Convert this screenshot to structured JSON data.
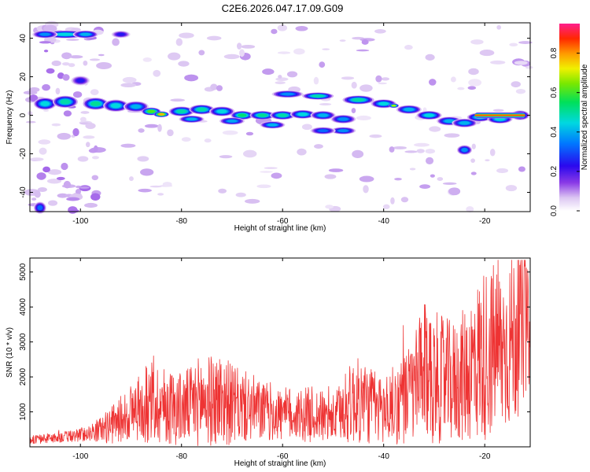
{
  "chart_data": [
    {
      "type": "heatmap",
      "title": "C2E6.2026.047.17.09.G09",
      "xlabel": "Height of straight line (km)",
      "ylabel": "Frequency (Hz)",
      "xlim": [
        -110,
        -11
      ],
      "ylim": [
        -50,
        48
      ],
      "xticks": [
        -100,
        -80,
        -60,
        -40,
        -20
      ],
      "xtick_labels": [
        "-100",
        "-80",
        "-60",
        "-40",
        "-20"
      ],
      "yticks": [
        -40,
        -20,
        0,
        20,
        40
      ],
      "ytick_labels": [
        "-40",
        "-20",
        "0",
        "20",
        "40"
      ],
      "colorbar": {
        "label": "Normalized spectral amplitude",
        "range": [
          0,
          0.95
        ],
        "ticks": [
          0.0,
          0.2,
          0.4,
          0.6,
          0.8
        ],
        "tick_labels": [
          "0.0",
          "0.2",
          "0.4",
          "0.6",
          "0.8"
        ]
      },
      "blobs": [
        {
          "x": -103,
          "y": 42,
          "v": 0.55,
          "wx": 3.5,
          "wy": 1.6
        },
        {
          "x": -107,
          "y": 42,
          "v": 0.45,
          "wx": 2,
          "wy": 1.6
        },
        {
          "x": -99,
          "y": 42,
          "v": 0.5,
          "wx": 2,
          "wy": 1.6
        },
        {
          "x": -92,
          "y": 42,
          "v": 0.3,
          "wx": 1.5,
          "wy": 1.5
        },
        {
          "x": -100,
          "y": 18,
          "v": 0.3,
          "wx": 1.5,
          "wy": 2
        },
        {
          "x": -108,
          "y": -48,
          "v": 0.4,
          "wx": 1,
          "wy": 2.5
        },
        {
          "x": -107,
          "y": 6,
          "v": 0.55,
          "wx": 1.8,
          "wy": 2.5
        },
        {
          "x": -103,
          "y": 7,
          "v": 0.6,
          "wx": 2,
          "wy": 2.5
        },
        {
          "x": -97,
          "y": 6,
          "v": 0.62,
          "wx": 2,
          "wy": 2.5
        },
        {
          "x": -93,
          "y": 5,
          "v": 0.55,
          "wx": 2,
          "wy": 2.5
        },
        {
          "x": -89,
          "y": 4.5,
          "v": 0.5,
          "wx": 2,
          "wy": 2.2
        },
        {
          "x": -86,
          "y": 2,
          "v": 0.75,
          "wx": 1.5,
          "wy": 1.6
        },
        {
          "x": -84,
          "y": 0.5,
          "v": 0.95,
          "wx": 1.2,
          "wy": 1.2
        },
        {
          "x": -80,
          "y": 2,
          "v": 0.6,
          "wx": 2,
          "wy": 2
        },
        {
          "x": -76,
          "y": 3,
          "v": 0.6,
          "wx": 2,
          "wy": 2
        },
        {
          "x": -72,
          "y": 2,
          "v": 0.55,
          "wx": 2,
          "wy": 2
        },
        {
          "x": -68,
          "y": 0,
          "v": 0.65,
          "wx": 1.8,
          "wy": 1.8
        },
        {
          "x": -64,
          "y": 0,
          "v": 0.62,
          "wx": 2,
          "wy": 1.8
        },
        {
          "x": -60,
          "y": 0,
          "v": 0.6,
          "wx": 2,
          "wy": 1.8
        },
        {
          "x": -56,
          "y": 0.5,
          "v": 0.55,
          "wx": 2,
          "wy": 1.8
        },
        {
          "x": -52,
          "y": 0,
          "v": 0.5,
          "wx": 2,
          "wy": 1.8
        },
        {
          "x": -48,
          "y": -2,
          "v": 0.45,
          "wx": 2,
          "wy": 1.8
        },
        {
          "x": -78,
          "y": -2,
          "v": 0.5,
          "wx": 2,
          "wy": 1.5
        },
        {
          "x": -70,
          "y": -3,
          "v": 0.48,
          "wx": 2,
          "wy": 1.5
        },
        {
          "x": -62,
          "y": -5,
          "v": 0.5,
          "wx": 2,
          "wy": 1.5
        },
        {
          "x": -59,
          "y": 11,
          "v": 0.45,
          "wx": 2.5,
          "wy": 1.5
        },
        {
          "x": -53,
          "y": 10,
          "v": 0.6,
          "wx": 2.5,
          "wy": 1.5
        },
        {
          "x": -45,
          "y": 8,
          "v": 0.6,
          "wx": 2.5,
          "wy": 1.8
        },
        {
          "x": -40,
          "y": 6,
          "v": 0.55,
          "wx": 2,
          "wy": 1.8
        },
        {
          "x": -38,
          "y": 5,
          "v": 0.85,
          "wx": 0.8,
          "wy": 0.9
        },
        {
          "x": -35,
          "y": 3,
          "v": 0.5,
          "wx": 2,
          "wy": 1.8
        },
        {
          "x": -31,
          "y": 0,
          "v": 0.55,
          "wx": 2,
          "wy": 1.8
        },
        {
          "x": -27,
          "y": -3,
          "v": 0.5,
          "wx": 2,
          "wy": 1.8
        },
        {
          "x": -24,
          "y": -4,
          "v": 0.5,
          "wx": 2,
          "wy": 1.8
        },
        {
          "x": -21,
          "y": -1,
          "v": 0.55,
          "wx": 2,
          "wy": 1.8
        },
        {
          "x": -17,
          "y": -2,
          "v": 0.55,
          "wx": 2,
          "wy": 1.8
        },
        {
          "x": -48,
          "y": -8,
          "v": 0.45,
          "wx": 2,
          "wy": 1.5
        },
        {
          "x": -52,
          "y": -8,
          "v": 0.4,
          "wx": 2,
          "wy": 1.5
        },
        {
          "x": -24,
          "y": -18,
          "v": 0.45,
          "wx": 1.2,
          "wy": 2
        },
        {
          "x": -13,
          "y": 0,
          "v": 0.5,
          "wx": 1.5,
          "wy": 2
        }
      ],
      "bands": [
        {
          "x0": -22,
          "x1": -12,
          "y": 0,
          "v": 0.9,
          "h": 1.2
        }
      ]
    },
    {
      "type": "line",
      "xlabel": "Height of straight line (km)",
      "ylabel": "SNR (10 * v/v)",
      "xlim": [
        -110,
        -11
      ],
      "ylim": [
        0,
        5400
      ],
      "xticks": [
        -100,
        -80,
        -60,
        -40,
        -20
      ],
      "xtick_labels": [
        "-100",
        "-80",
        "-60",
        "-40",
        "-20"
      ],
      "yticks": [
        1000,
        2000,
        3000,
        4000,
        5000
      ],
      "ytick_labels": [
        "1000",
        "2000",
        "3000",
        "4000",
        "5000"
      ],
      "series": [
        {
          "name": "SNR",
          "color": "#ee3333",
          "x": [
            -110,
            -106,
            -102,
            -98,
            -96,
            -94,
            -92,
            -90,
            -88,
            -86,
            -84,
            -82,
            -80,
            -78,
            -76,
            -74,
            -72,
            -70,
            -68,
            -66,
            -64,
            -62,
            -60,
            -58,
            -56,
            -54,
            -52,
            -50,
            -48,
            -46,
            -44,
            -42,
            -40,
            -38,
            -36,
            -34,
            -32,
            -30,
            -28,
            -26,
            -24,
            -22,
            -20,
            -18,
            -16,
            -14,
            -12,
            -11
          ],
          "y": [
            200,
            250,
            300,
            400,
            500,
            600,
            800,
            1000,
            1100,
            1300,
            1200,
            1150,
            1100,
            1200,
            1350,
            1300,
            1400,
            1200,
            1150,
            1100,
            1000,
            1000,
            900,
            950,
            900,
            950,
            850,
            800,
            1050,
            1300,
            1300,
            1150,
            1050,
            1200,
            1350,
            1650,
            2100,
            2000,
            1900,
            1850,
            2050,
            2400,
            2650,
            2800,
            2800,
            3200,
            3400,
            3300
          ],
          "amp": [
            0.6,
            0.6,
            0.6,
            0.6,
            0.8,
            0.9,
            0.9,
            0.9,
            0.95,
            1.0,
            1.0,
            1.0,
            1.0,
            1.0,
            1.05,
            1.05,
            1.05,
            1.0,
            0.95,
            0.95,
            0.9,
            0.9,
            0.9,
            0.9,
            0.9,
            0.9,
            0.9,
            0.9,
            0.95,
            1.0,
            1.0,
            1.0,
            1.0,
            1.0,
            1.0,
            1.0,
            1.0,
            1.0,
            1.0,
            1.0,
            1.0,
            1.0,
            1.0,
            0.95,
            0.9,
            0.85,
            0.6,
            0.5
          ]
        }
      ]
    }
  ]
}
